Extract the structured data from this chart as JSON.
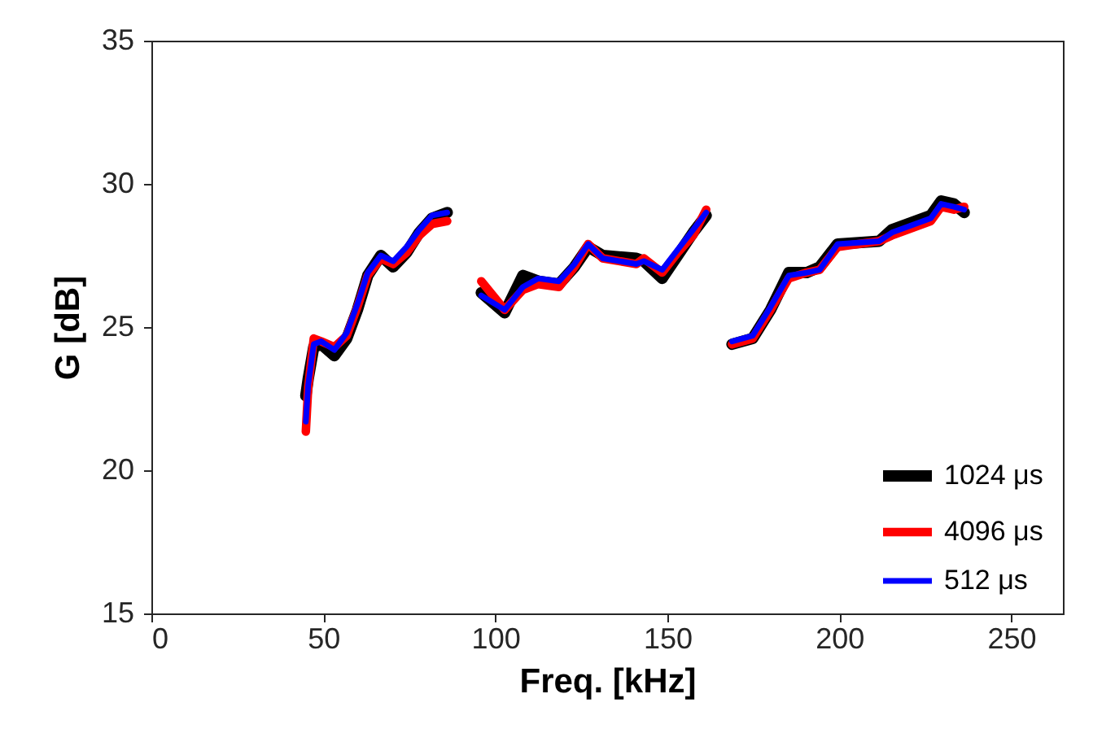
{
  "chart_data": {
    "type": "line",
    "xlabel": "Freq. [kHz]",
    "ylabel": "G [dB]",
    "xlim": [
      0,
      265
    ],
    "xticks": [
      0,
      50,
      100,
      150,
      200,
      250
    ],
    "ylim": [
      15,
      35
    ],
    "yticks": [
      15,
      20,
      25,
      30,
      35
    ],
    "grid": false,
    "legend": "bottom right",
    "marker": "none",
    "line_style": "solid",
    "series": [
      {
        "name": "1024 μs",
        "color": "#000000",
        "x": [
          44.9,
          45.6,
          47.2,
          49.4,
          53.2,
          56.8,
          59.9,
          62.9,
          66.7,
          70.3,
          74.2,
          77.9,
          81.6,
          86,
          90,
          95.9,
          102.7,
          108,
          112.5,
          118.5,
          123,
          127,
          131.2,
          141,
          143.2,
          148.5,
          153,
          157.5,
          161.3,
          165,
          168.8,
          174.8,
          180,
          185.3,
          190.5,
          194.3,
          199.5,
          211.6,
          215.3,
          226.6,
          229.6,
          233.3,
          236.3
        ],
        "values": [
          22.6,
          23.2,
          24.3,
          24.4,
          24.0,
          24.6,
          25.6,
          26.8,
          27.5,
          27.1,
          27.6,
          28.3,
          28.8,
          29.0,
          null,
          26.2,
          25.5,
          26.8,
          26.6,
          26.5,
          27.1,
          27.8,
          27.5,
          27.4,
          27.3,
          26.7,
          27.5,
          28.3,
          28.9,
          null,
          24.4,
          24.6,
          25.6,
          26.9,
          26.9,
          27.1,
          27.9,
          28.0,
          28.4,
          28.9,
          29.4,
          29.3,
          29.0
        ]
      },
      {
        "name": "4096 μs",
        "color": "#ff0000",
        "x": [
          44.9,
          45.6,
          47.2,
          49.4,
          53.2,
          56.8,
          59.9,
          62.9,
          66.7,
          70.3,
          74.2,
          77.9,
          81.6,
          86,
          90,
          95.9,
          102.7,
          108,
          112.5,
          118.5,
          123,
          127,
          131.2,
          141,
          143.2,
          148.5,
          153,
          157.5,
          161.3,
          165,
          168.8,
          174.8,
          180,
          185.3,
          190.5,
          194.3,
          199.5,
          211.6,
          215.3,
          226.6,
          229.6,
          233.3,
          236.3
        ],
        "values": [
          21.35,
          22.9,
          24.6,
          24.5,
          24.3,
          24.7,
          25.7,
          26.8,
          27.4,
          27.2,
          27.6,
          28.2,
          28.6,
          28.7,
          null,
          26.6,
          25.6,
          26.3,
          26.5,
          26.4,
          27.1,
          27.9,
          27.4,
          27.2,
          27.4,
          26.9,
          27.6,
          28.2,
          29.1,
          null,
          24.4,
          24.6,
          25.6,
          26.7,
          26.9,
          27.0,
          27.8,
          28.0,
          28.2,
          28.7,
          29.2,
          29.1,
          29.2
        ]
      },
      {
        "name": "512 μs",
        "color": "#0000ff",
        "x": [
          44.9,
          45.6,
          47.2,
          49.4,
          53.2,
          56.8,
          59.9,
          62.9,
          66.7,
          70.3,
          74.2,
          77.9,
          81.6,
          86,
          90,
          95.9,
          102.7,
          108,
          112.5,
          118.5,
          123,
          127,
          131.2,
          141,
          143.2,
          148.5,
          153,
          157.5,
          161.3,
          165,
          168.8,
          174.8,
          180,
          185.3,
          190.5,
          194.3,
          199.5,
          211.6,
          215.3,
          226.6,
          229.6,
          233.3,
          236.3
        ],
        "values": [
          21.7,
          23.0,
          24.4,
          24.5,
          24.2,
          24.8,
          25.8,
          26.9,
          27.5,
          27.3,
          27.8,
          28.4,
          28.9,
          29.0,
          null,
          26.1,
          25.6,
          26.4,
          26.7,
          26.6,
          27.2,
          27.9,
          27.4,
          27.2,
          27.3,
          27.0,
          27.7,
          28.4,
          29.0,
          null,
          24.5,
          24.7,
          25.7,
          26.8,
          26.9,
          27.0,
          27.9,
          28.0,
          28.3,
          28.8,
          29.3,
          29.2,
          29.1
        ]
      }
    ]
  }
}
